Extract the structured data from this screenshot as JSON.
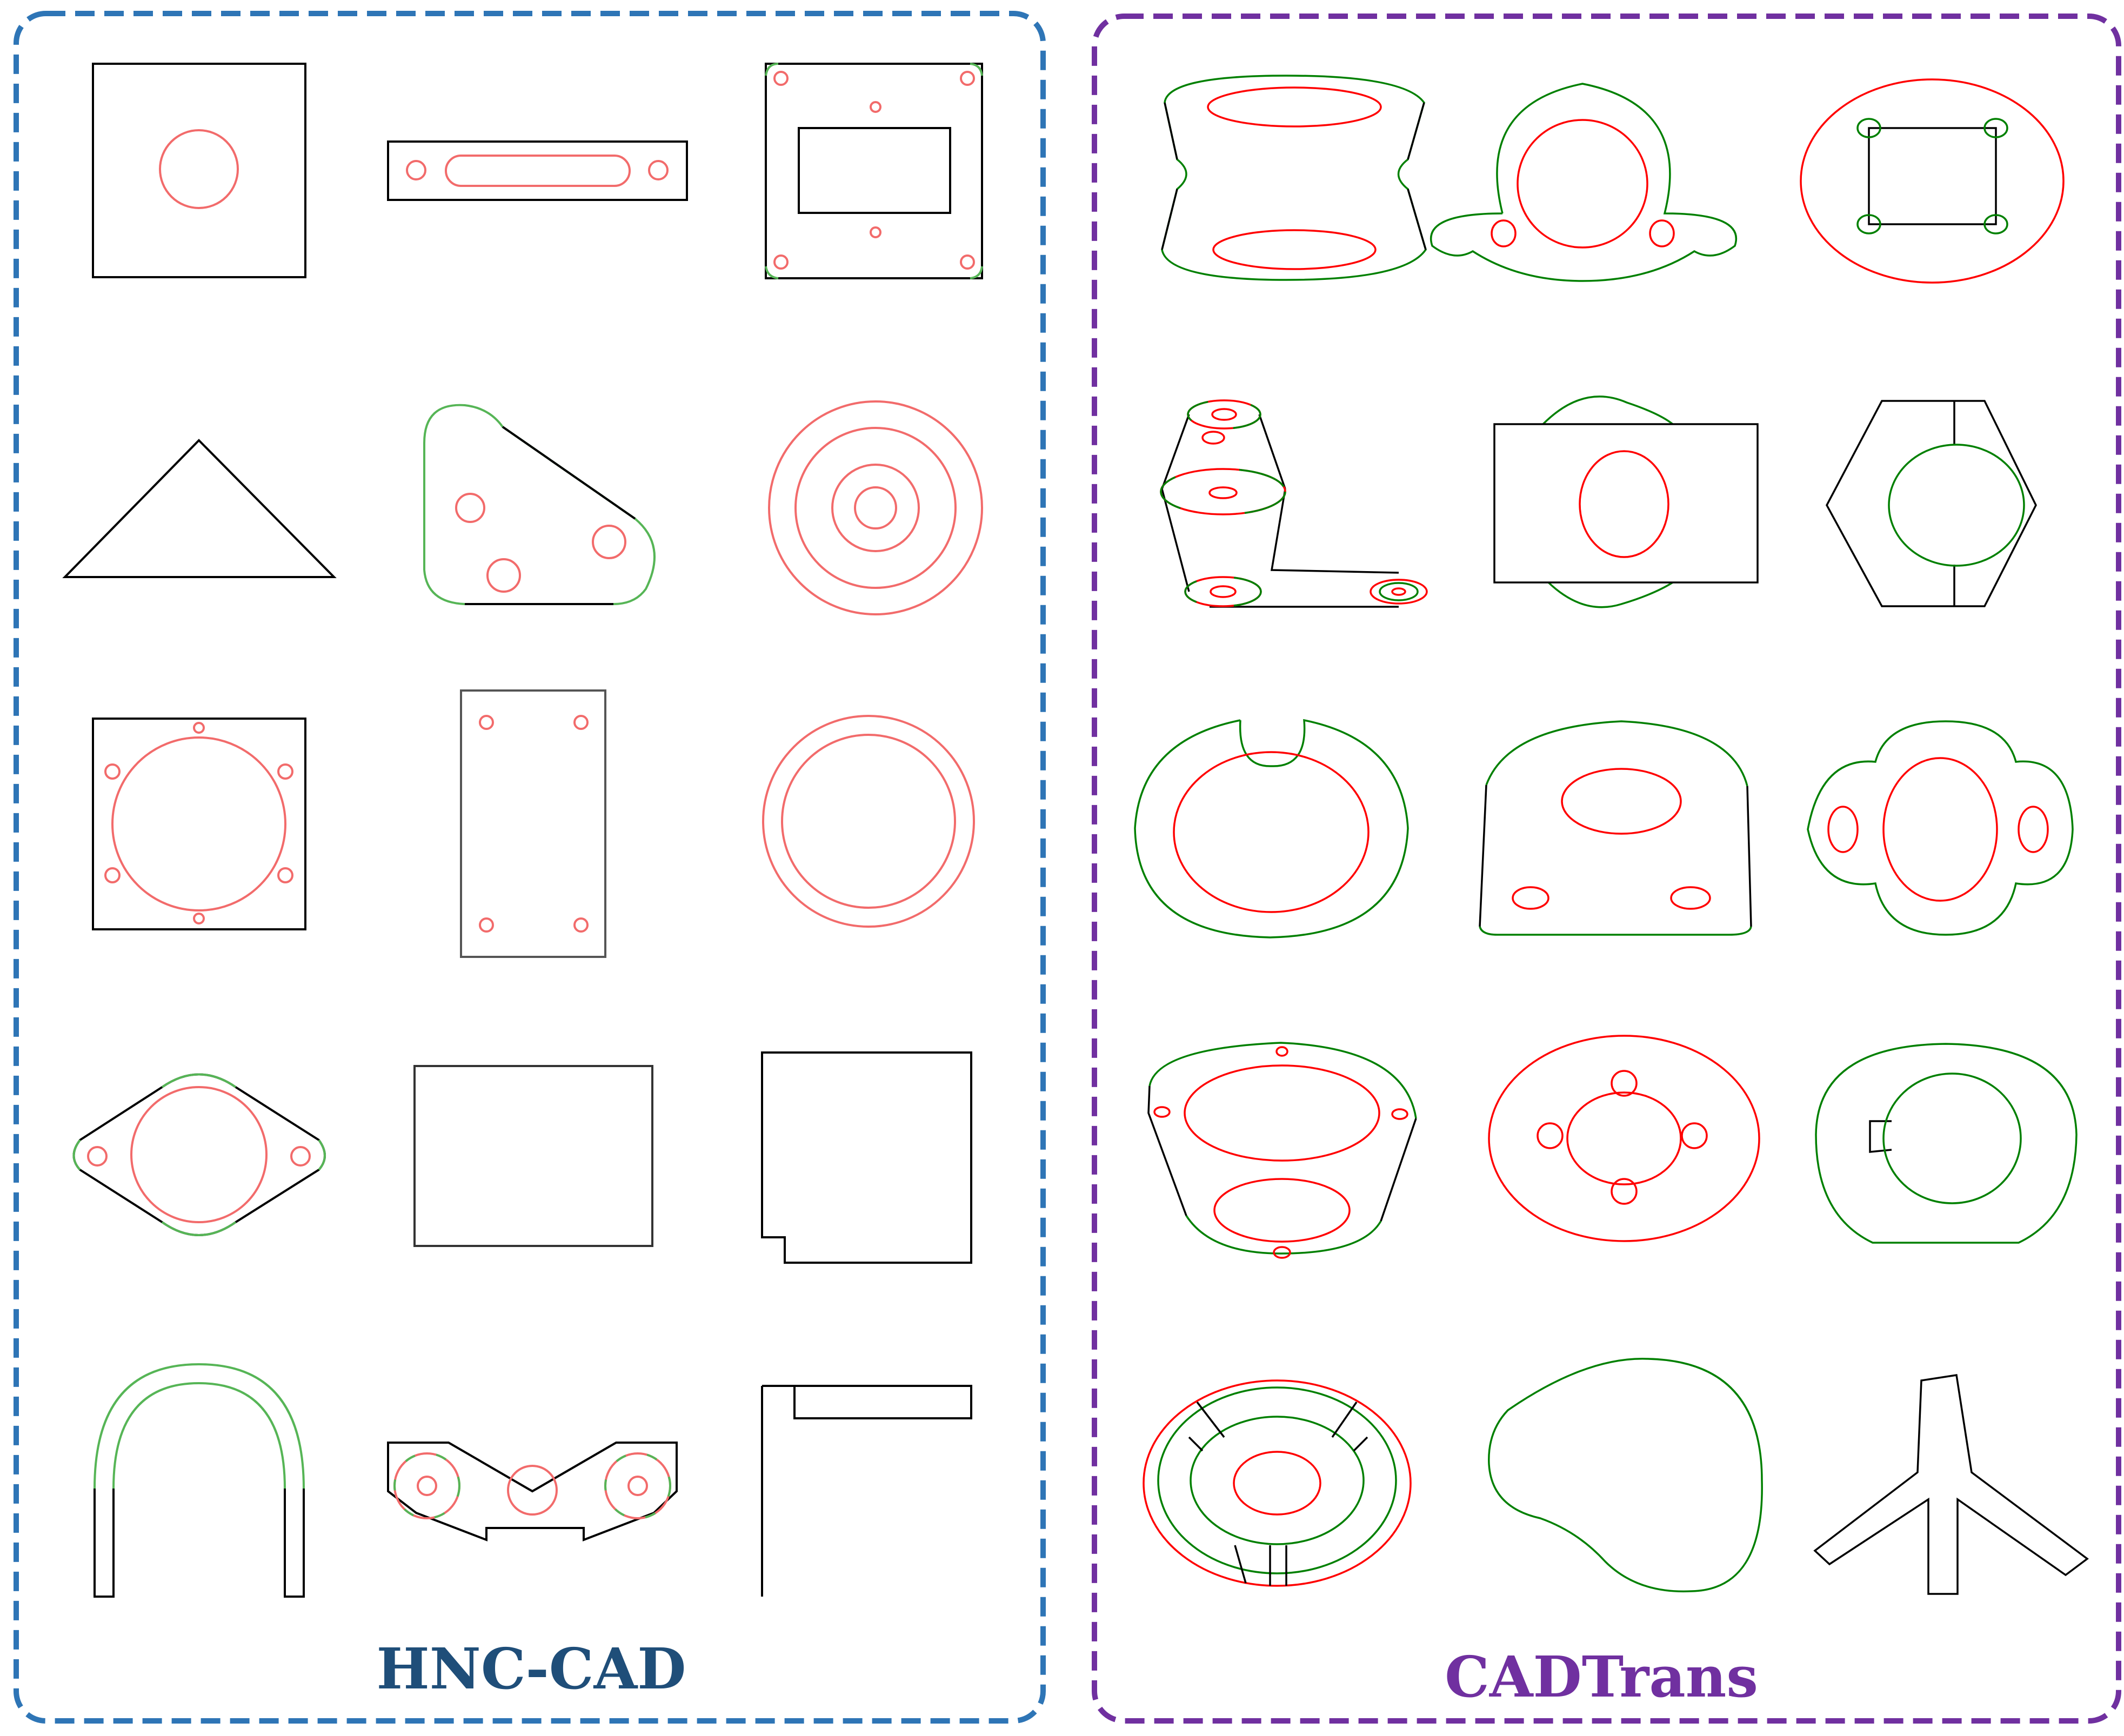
{
  "panels": [
    {
      "title": "HNC-CAD",
      "title_color": "#1f4e79",
      "border_color": "#2e75b6"
    },
    {
      "title": "CADTrans",
      "title_color": "#7030a0",
      "border_color": "#7030a0"
    }
  ],
  "colors": {
    "black": "#000000",
    "red": "#ff0000",
    "green": "#008000",
    "red_light": "#f26b6b",
    "green_light": "#56b556"
  },
  "cells": [
    "hnc-square-with-hole",
    "hnc-slotted-bar",
    "hnc-frame-plate",
    "hnc-triangle",
    "hnc-rounded-plate",
    "hnc-concentric-rings",
    "hnc-flange-square",
    "hnc-rectangle-four-holes",
    "hnc-double-ring",
    "hnc-diamond-flange",
    "hnc-rectangle",
    "hnc-notched-square",
    "hnc-u-hook",
    "hnc-v-block",
    "hnc-l-bracket",
    "cad-barrel",
    "cad-lug-ring",
    "cad-ellipse-rect",
    "cad-linkage",
    "cad-rect-with-circle",
    "cad-hexagon",
    "cad-notched-ring",
    "cad-dome-plate",
    "cad-lobed-flange",
    "cad-bearing-plate",
    "cad-ring-four-lugs",
    "cad-keyed-ring",
    "cad-retainer",
    "cad-kidney",
    "cad-tripod"
  ]
}
